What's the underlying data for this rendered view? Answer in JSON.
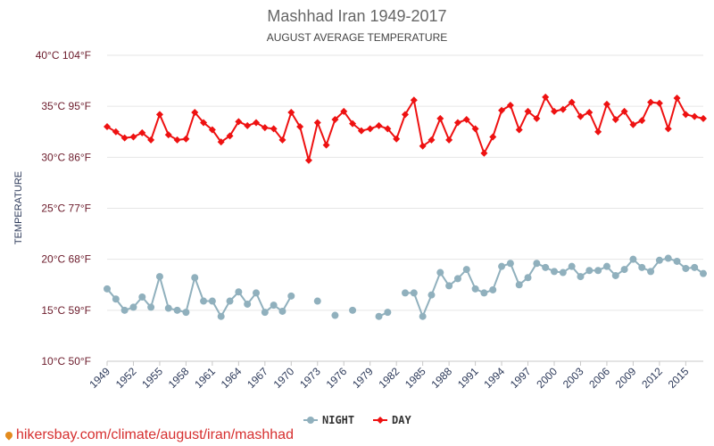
{
  "chart_data": {
    "type": "line",
    "title": "Mashhad Iran 1949-2017",
    "subtitle": "AUGUST AVERAGE TEMPERATURE",
    "ylabel": "TEMPERATURE",
    "ylim": [
      10,
      40
    ],
    "y_ticks": [
      {
        "value": 10,
        "label": "10°C 50°F"
      },
      {
        "value": 15,
        "label": "15°C 59°F"
      },
      {
        "value": 20,
        "label": "20°C 68°F"
      },
      {
        "value": 25,
        "label": "25°C 77°F"
      },
      {
        "value": 30,
        "label": "30°C 86°F"
      },
      {
        "value": 35,
        "label": "35°C 95°F"
      },
      {
        "value": 40,
        "label": "40°C 104°F"
      }
    ],
    "xlim": [
      1949,
      2017
    ],
    "x_ticks": [
      "1949",
      "1952",
      "1955",
      "1958",
      "1961",
      "1964",
      "1967",
      "1970",
      "1973",
      "1976",
      "1979",
      "1982",
      "1985",
      "1988",
      "1991",
      "1994",
      "1997",
      "2000",
      "2003",
      "2006",
      "2009",
      "2012",
      "2015"
    ],
    "legend": {
      "position": "bottom"
    },
    "x": [
      1949,
      1950,
      1951,
      1952,
      1953,
      1954,
      1955,
      1956,
      1957,
      1958,
      1959,
      1960,
      1961,
      1962,
      1963,
      1964,
      1965,
      1966,
      1967,
      1968,
      1969,
      1970,
      1971,
      1972,
      1973,
      1974,
      1975,
      1976,
      1977,
      1978,
      1979,
      1980,
      1981,
      1982,
      1983,
      1984,
      1985,
      1986,
      1987,
      1988,
      1989,
      1990,
      1991,
      1992,
      1993,
      1994,
      1995,
      1996,
      1997,
      1998,
      1999,
      2000,
      2001,
      2002,
      2003,
      2004,
      2005,
      2006,
      2007,
      2008,
      2009,
      2010,
      2011,
      2012,
      2013,
      2014,
      2015,
      2016,
      2017
    ],
    "series": [
      {
        "name": "NIGHT",
        "color": "#90b0bd",
        "values": [
          17.1,
          16.1,
          15.0,
          15.3,
          16.3,
          15.3,
          18.3,
          15.2,
          15.0,
          14.8,
          18.2,
          15.9,
          15.9,
          14.4,
          15.9,
          16.8,
          15.6,
          16.7,
          14.8,
          15.5,
          14.9,
          16.4,
          null,
          null,
          15.9,
          null,
          14.5,
          null,
          15.0,
          null,
          null,
          14.4,
          14.8,
          null,
          16.7,
          16.7,
          14.4,
          16.5,
          18.7,
          17.4,
          18.1,
          19.0,
          17.1,
          16.7,
          17.0,
          19.3,
          19.6,
          17.5,
          18.2,
          19.6,
          19.2,
          18.8,
          18.7,
          19.3,
          18.3,
          18.9,
          18.9,
          19.3,
          18.4,
          19.0,
          20.0,
          19.2,
          18.8,
          19.9,
          20.1,
          19.8,
          19.1,
          19.2,
          18.6
        ]
      },
      {
        "name": "DAY",
        "color": "#ee1111",
        "values": [
          33.0,
          32.5,
          31.9,
          32.0,
          32.4,
          31.7,
          34.2,
          32.2,
          31.7,
          31.8,
          34.4,
          33.4,
          32.7,
          31.5,
          32.1,
          33.5,
          33.1,
          33.4,
          32.9,
          32.8,
          31.7,
          34.4,
          33.0,
          29.7,
          33.4,
          31.2,
          33.7,
          34.5,
          33.3,
          32.6,
          32.8,
          33.1,
          32.8,
          31.8,
          34.2,
          35.6,
          31.1,
          31.7,
          33.8,
          31.7,
          33.4,
          33.7,
          32.8,
          30.4,
          32.0,
          34.6,
          35.1,
          32.7,
          34.5,
          33.8,
          35.9,
          34.5,
          34.7,
          35.4,
          34.0,
          34.4,
          32.5,
          35.2,
          33.7,
          34.5,
          33.2,
          33.6,
          35.4,
          35.3,
          32.8,
          35.8,
          34.2,
          34.0,
          33.8
        ]
      }
    ]
  },
  "watermark": "hikersbay.com/climate/august/iran/mashhad"
}
